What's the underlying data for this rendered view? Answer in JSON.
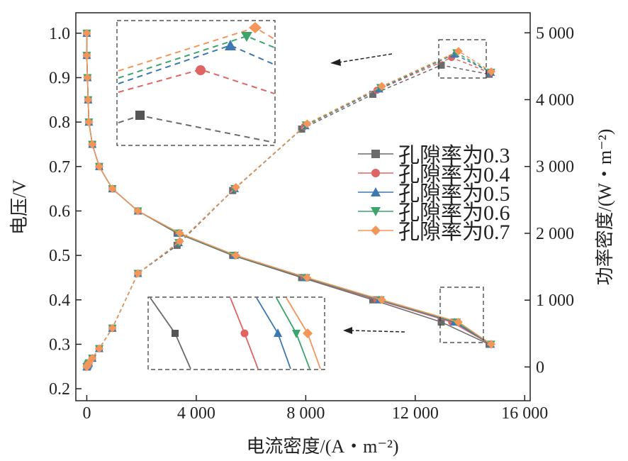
{
  "chart_data": {
    "type": "line",
    "xlabel": "电流密度/(A・m⁻²)",
    "ylabel": "电压/V",
    "y2label": "功率密度/(W・m⁻²)",
    "xlim": [
      -400,
      16200
    ],
    "ylim": [
      0.173,
      1.046
    ],
    "y2lim": [
      -505,
      5300
    ],
    "xticks": [
      {
        "v": 0,
        "label": "0"
      },
      {
        "v": 4000,
        "label": "4 000"
      },
      {
        "v": 8000,
        "label": "8 000"
      },
      {
        "v": 12000,
        "label": "12 000"
      },
      {
        "v": 16000,
        "label": "16 000"
      }
    ],
    "yticks": [
      {
        "v": 0.2,
        "label": "0.2"
      },
      {
        "v": 0.3,
        "label": "0.3"
      },
      {
        "v": 0.4,
        "label": "0.4"
      },
      {
        "v": 0.5,
        "label": "0.5"
      },
      {
        "v": 0.6,
        "label": "0.6"
      },
      {
        "v": 0.7,
        "label": "0.7"
      },
      {
        "v": 0.8,
        "label": "0.8"
      },
      {
        "v": 0.9,
        "label": "0.9"
      },
      {
        "v": 1.0,
        "label": "1.0"
      }
    ],
    "y2ticks": [
      {
        "v": 0,
        "label": "0"
      },
      {
        "v": 1000,
        "label": "1 000"
      },
      {
        "v": 2000,
        "label": "2 000"
      },
      {
        "v": 3000,
        "label": "3 000"
      },
      {
        "v": 4000,
        "label": "4 000"
      },
      {
        "v": 5000,
        "label": "5 000"
      }
    ],
    "grid": false,
    "legend_position": "right-middle",
    "voltage": [
      1.0,
      0.95,
      0.9,
      0.85,
      0.8,
      0.75,
      0.7,
      0.65,
      0.6,
      0.55,
      0.5,
      0.45,
      0.4,
      0.35,
      0.3
    ],
    "series": [
      {
        "name": "孔隙率为0.3",
        "color": "#6b6b6b",
        "marker": "square",
        "current": [
          0,
          0,
          25,
          50,
          76,
          202,
          454,
          934,
          1868,
          3300,
          5330,
          7850,
          10450,
          12950,
          14700
        ],
        "power": [
          0,
          5,
          20,
          40,
          60,
          130,
          275,
          580,
          1400,
          1820,
          2640,
          3560,
          4080,
          4516,
          4380
        ]
      },
      {
        "name": "孔隙率为0.4",
        "color": "#e06464",
        "marker": "circle",
        "current": [
          0,
          0,
          25,
          50,
          76,
          202,
          454,
          934,
          1868,
          3357,
          5401,
          7950,
          10600,
          13330,
          14750
        ],
        "power": [
          0,
          5,
          20,
          40,
          60,
          130,
          275,
          580,
          1400,
          1860,
          2670,
          3600,
          4140,
          4630,
          4400
        ]
      },
      {
        "name": "孔隙率为0.5",
        "color": "#3b78b4",
        "marker": "triangle-up",
        "current": [
          0,
          0,
          25,
          50,
          76,
          202,
          454,
          934,
          1868,
          3357,
          5401,
          7980,
          10680,
          13430,
          14760
        ],
        "power": [
          0,
          5,
          20,
          40,
          60,
          130,
          275,
          580,
          1400,
          1860,
          2670,
          3610,
          4160,
          4680,
          4410
        ]
      },
      {
        "name": "孔隙率为0.6",
        "color": "#3ca46c",
        "marker": "triangle-down",
        "current": [
          0,
          0,
          25,
          50,
          76,
          202,
          454,
          934,
          1868,
          3357,
          5401,
          8010,
          10730,
          13510,
          14770
        ],
        "power": [
          0,
          5,
          20,
          40,
          60,
          130,
          275,
          580,
          1400,
          1860,
          2670,
          3620,
          4180,
          4700,
          4410
        ]
      },
      {
        "name": "孔隙率为0.7",
        "color": "#f4955a",
        "marker": "diamond",
        "current": [
          0,
          0,
          25,
          50,
          76,
          202,
          454,
          934,
          1868,
          3400,
          5450,
          8050,
          10780,
          13580,
          14780
        ],
        "power": [
          0,
          5,
          20,
          40,
          60,
          130,
          275,
          580,
          1400,
          1880,
          2690,
          3640,
          4200,
          4725,
          4420
        ]
      }
    ]
  }
}
